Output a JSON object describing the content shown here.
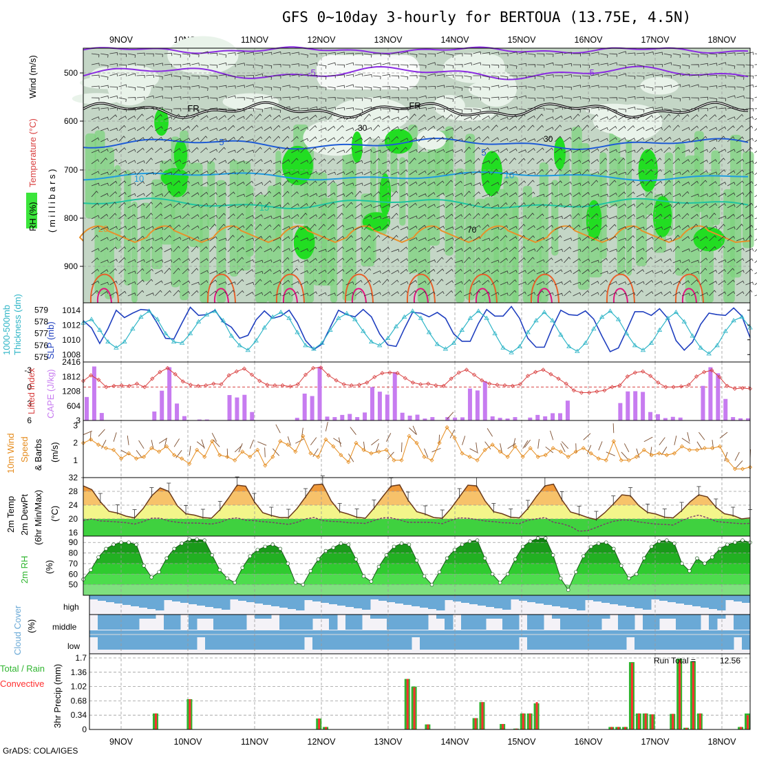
{
  "title": "GFS 0~10day 3-hourly for BERTOUA (13.75E, 4.5N)",
  "footer": "GrADS: COLA/IGES",
  "dates": [
    "9NOV",
    "10NOV",
    "11NOV",
    "12NOV",
    "13NOV",
    "14NOV",
    "15NOV",
    "16NOV",
    "17NOV",
    "18NOV"
  ],
  "colors": {
    "rh_light": "#e9f3ea",
    "rh_mid": "#c6d9c8",
    "rh_green": "#7ed37e",
    "rh_bright": "#22dd22",
    "slp": "#1f3fbf",
    "thick": "#2fb5c7",
    "li": "#d94040",
    "cape": "#c77cf0",
    "wind": "#e58b1c",
    "rain": "#2fb52f",
    "conv": "#ff3030",
    "cloud": "#6aa9d6",
    "cloud_bg": "#f4f2f7"
  },
  "panels": {
    "sounding": {
      "labels": [
        "RH (%)",
        "Temperature (°C)",
        "Wind (m/s)"
      ],
      "unit": "( m i l l i b a r s )",
      "ticks": [
        "500",
        "600",
        "700",
        "800",
        "900"
      ],
      "contours": [
        {
          "label": "-5",
          "color": "#8a2be2"
        },
        {
          "label": "FR",
          "color": "#000000"
        },
        {
          "label": "5",
          "color": "#1e5bd6"
        },
        {
          "label": "10",
          "color": "#1f9be0"
        },
        {
          "label": "15",
          "color": "#1fc4a0"
        },
        {
          "label": "20",
          "color": "#e8902a"
        }
      ],
      "rh_labels": [
        "30",
        "30",
        "70"
      ]
    },
    "slp": {
      "labels": [
        "1000-500mb",
        "Thickness (dm)",
        "SLP (mb)"
      ],
      "left_ticks": [
        "575",
        "576",
        "577",
        "578",
        "579"
      ],
      "right_ticks": [
        "1008",
        "1010",
        "1012",
        "1014"
      ]
    },
    "cape": {
      "labels": [
        "Lifted Index",
        "CAPE (J/kg)"
      ],
      "left_ticks": [
        "-3",
        "0",
        "3",
        "6"
      ],
      "right_ticks": [
        "3",
        "604",
        "1208",
        "1812",
        "2416"
      ]
    },
    "wind10": {
      "labels": [
        "10m Wind",
        "Speed",
        "& Barbs"
      ],
      "unit": "(m/s)",
      "ticks": [
        "1",
        "2",
        "3"
      ]
    },
    "temp": {
      "labels": [
        "2m Temp",
        "2m DewPt",
        "(6hr Min/Max)"
      ],
      "unit": "(°C)",
      "ticks": [
        "16",
        "20",
        "24",
        "28",
        "32"
      ]
    },
    "rh2m": {
      "labels": [
        "2m RH"
      ],
      "unit": "(%)",
      "ticks": [
        "50",
        "60",
        "70",
        "80",
        "90"
      ]
    },
    "cloud": {
      "labels": [
        "Cloud Cover"
      ],
      "unit": "(%)",
      "levels": [
        "high",
        "middle",
        "low"
      ]
    },
    "precip": {
      "labels": [
        "Total / Rain",
        "Convective"
      ],
      "unit": "3hr Precip (mm)",
      "ticks": [
        "0",
        "0.34",
        "0.68",
        "1.02",
        "1.36",
        "1.7"
      ],
      "run_total_label": "Run Total =",
      "run_total_value": "12.56"
    }
  },
  "chart_data": [
    {
      "type": "line",
      "title": "SLP (mb)",
      "x_unit": "3-hour steps from 8NOV 12Z",
      "series": [
        {
          "name": "SLP (mb)",
          "values": [
            1012.6,
            1011.6,
            1009.5,
            1011.5,
            1014.0,
            1013.0,
            1013.6,
            1014.1,
            1014.0,
            1012.2,
            1010.2,
            1010.1,
            1012.3,
            1014.4,
            1013.3,
            1013.4,
            1014.0,
            1012.4,
            1011.7,
            1010.2,
            1010.6,
            1012.7,
            1013.9,
            1012.9,
            1013.2,
            1014.0,
            1012.3,
            1009.9,
            1008.7,
            1009.4,
            1011.7,
            1014.0,
            1013.4,
            1013.1,
            1014.1,
            1013.1,
            1010.8,
            1009.3,
            1009.1,
            1011.5,
            1013.7,
            1013.6,
            1013.1,
            1013.7,
            1012.9,
            1010.8,
            1009.8,
            1009.8,
            1012.2,
            1014.1,
            1013.2,
            1013.2,
            1014.5,
            1012.9,
            1010.2,
            1009.0,
            1009.0,
            1011.7,
            1014.0,
            1013.4,
            1013.3,
            1013.9,
            1012.8,
            1010.5,
            1008.4,
            1008.9,
            1011.3,
            1013.8,
            1013.8,
            1013.3,
            1014.2,
            1012.9,
            1009.9,
            1008.6,
            1009.7,
            1012.1,
            1013.6,
            1013.4,
            1013.3,
            1014.3,
            1013.2,
            1010.3
          ]
        },
        {
          "name": "1000-500mb Thickness (dm)",
          "values": [
            577.9,
            578.2,
            577.3,
            576.3,
            575.8,
            576.3,
            577.4,
            578.4,
            578.9,
            578.2,
            577.0,
            576.3,
            576.2,
            577.0,
            578.0,
            578.6,
            578.9,
            578.1,
            576.8,
            576.0,
            575.6,
            576.4,
            577.5,
            578.4,
            578.8,
            578.3,
            577.1,
            576.0,
            575.7,
            576.2,
            577.3,
            578.3,
            578.7,
            578.2,
            577.2,
            576.3,
            576.0,
            576.6,
            577.6,
            578.4,
            578.9,
            578.3,
            577.1,
            576.1,
            575.7,
            576.2,
            577.3,
            578.3,
            578.9,
            578.3,
            577.0,
            575.8,
            575.4,
            575.9,
            577.1,
            578.1,
            578.8,
            578.1,
            576.9,
            575.9,
            575.5,
            576.2,
            577.4,
            578.4,
            578.9,
            578.2,
            577.0,
            576.0,
            575.6,
            576.2,
            577.3,
            578.3,
            578.8,
            578.0,
            576.8,
            575.8,
            575.3,
            576.0,
            577.2,
            578.1,
            578.4,
            577.5
          ]
        }
      ]
    },
    {
      "type": "bar",
      "title": "CAPE (J/kg)",
      "series": [
        {
          "name": "CAPE (J/kg)",
          "values": [
            970,
            2230,
            310,
            3,
            3,
            3,
            3,
            3,
            3,
            370,
            1230,
            2200,
            700,
            180,
            3,
            40,
            40,
            3,
            3,
            1050,
            950,
            1060,
            350,
            3,
            3,
            3,
            3,
            3,
            110,
            1110,
            1010,
            2220,
            160,
            140,
            230,
            270,
            140,
            330,
            1380,
            1190,
            1070,
            2000,
            320,
            200,
            240,
            80,
            140,
            3,
            140,
            120,
            130,
            1320,
            1240,
            1630,
            170,
            110,
            80,
            140,
            3,
            120,
            230,
            170,
            300,
            300,
            820,
            3,
            3,
            3,
            3,
            3,
            3,
            720,
            1200,
            1210,
            1180,
            350,
            260,
            100,
            150,
            120,
            3,
            3,
            1430,
            2200,
            1950,
            890,
            140,
            90,
            90
          ]
        },
        {
          "name": "Lifted Index",
          "values": [
            -1.1,
            -2.1,
            -1.3,
            0.0,
            -0.2,
            -0.3,
            -0.2,
            -0.6,
            0.0,
            -1.5,
            -2.7,
            -3.4,
            -2.3,
            -1.0,
            -0.4,
            -0.2,
            -0.3,
            -0.6,
            -0.5,
            -2.1,
            -2.8,
            -3.3,
            -2.2,
            -1.1,
            -0.4,
            -0.3,
            -0.3,
            -0.1,
            -0.5,
            -2.2,
            -3.4,
            -3.5,
            -2.1,
            -1.2,
            -0.5,
            -0.3,
            -0.4,
            -0.8,
            -1.8,
            -2.5,
            -2.6,
            -2.5,
            -1.6,
            -0.8,
            -0.5,
            -0.6,
            -0.3,
            -0.2,
            -1.5,
            -2.6,
            -3.1,
            -2.2,
            -1.2,
            -0.6,
            -0.4,
            -0.3,
            -0.2,
            -0.5,
            -2.0,
            -2.7,
            -3.1,
            -2.3,
            -1.5,
            -0.6,
            0.6,
            1.0,
            1.0,
            0.8,
            0.6,
            0.0,
            -0.3,
            -1.9,
            -2.6,
            -2.8,
            -2.0,
            -0.8,
            0.0,
            0.0,
            -0.1,
            -0.4,
            -1.9,
            -2.7,
            -3.0,
            -1.8,
            -0.2,
            0.3,
            0.2,
            0.3
          ]
        }
      ]
    },
    {
      "type": "line",
      "title": "10m Wind Speed & Barbs (m/s)",
      "series": [
        {
          "name": "10m Wind Speed",
          "values": [
            2.0,
            2.2,
            1.9,
            1.7,
            1.6,
            1.1,
            1.4,
            1.1,
            1.2,
            1.7,
            1.5,
            1.8,
            1.3,
            1.1,
            0.8,
            1.6,
            1.2,
            2.1,
            1.3,
            1.2,
            1.0,
            1.5,
            1.2,
            1.6,
            0.7,
            1.2,
            2.1,
            1.9,
            1.5,
            2.4,
            1.4,
            1.2,
            2.2,
            1.8,
            1.3,
            0.9,
            2.0,
            1.6,
            1.4,
            1.5,
            1.6,
            1.0,
            1.0,
            2.4,
            2.0,
            1.2,
            1.0,
            2.0,
            2.9,
            2.3,
            1.4,
            1.2,
            1.0,
            1.6,
            1.9,
            1.5,
            1.2,
            1.8,
            1.2,
            1.7,
            1.2,
            1.3,
            1.7,
            1.5,
            1.2,
            1.5,
            1.7,
            1.4,
            1.1,
            1.0,
            2.1,
            1.0,
            1.0,
            1.2,
            1.6,
            1.3,
            1.4,
            1.3,
            1.4,
            1.8,
            1.6,
            1.6,
            1.7,
            1.7,
            1.8,
            1.0,
            0.5,
            0.5,
            0.6
          ]
        }
      ]
    },
    {
      "type": "area",
      "title": "2m Temp / 2m DewPt (°C)",
      "series": [
        {
          "name": "2m Temp",
          "values": [
            29.6,
            28.5,
            25.0,
            22.2,
            21.7,
            20.8,
            20.3,
            23.0,
            26.7,
            29.0,
            28.0,
            23.8,
            21.5,
            21.1,
            20.4,
            20.2,
            22.7,
            26.1,
            29.8,
            29.5,
            25.0,
            21.8,
            21.0,
            20.4,
            20.4,
            23.0,
            26.4,
            29.9,
            30.1,
            25.2,
            22.1,
            21.4,
            20.5,
            20.2,
            23.1,
            26.4,
            29.5,
            29.9,
            25.4,
            22.1,
            21.4,
            20.4,
            20.2,
            23.0,
            26.4,
            29.8,
            29.6,
            25.2,
            22.1,
            21.5,
            20.5,
            20.3,
            23.0,
            26.5,
            29.6,
            30.1,
            25.5,
            22.0,
            21.3,
            20.4,
            19.8,
            21.8,
            24.3,
            27.0,
            26.7,
            23.8,
            21.9,
            21.4,
            20.5,
            20.3,
            22.4,
            25.0,
            27.0,
            26.4,
            23.4,
            21.5,
            21.0,
            20.0,
            20.3
          ]
        },
        {
          "name": "2m DewPt",
          "values": [
            19.5,
            20.0,
            19.4,
            19.3,
            19.1,
            18.9,
            18.5,
            19.2,
            20.2,
            20.2,
            19.4,
            19.0,
            18.8,
            18.8,
            18.7,
            18.5,
            19.0,
            20.0,
            20.3,
            19.6,
            19.5,
            19.2,
            19.0,
            18.7,
            18.4,
            19.0,
            20.0,
            20.4,
            19.5,
            19.3,
            19.2,
            18.9,
            18.8,
            18.7,
            19.5,
            20.3,
            20.3,
            19.7,
            19.0,
            19.0,
            19.0,
            18.9,
            18.6,
            19.6,
            20.3,
            20.2,
            19.8,
            19.4,
            19.2,
            18.9,
            18.8,
            18.6,
            19.6,
            20.0,
            20.4,
            19.0,
            18.6,
            17.8,
            16.4,
            16.6,
            17.5,
            18.5,
            19.3,
            19.7,
            19.6,
            19.1,
            18.8,
            18.5,
            18.4,
            18.2,
            19.5,
            20.5,
            21.1,
            20.3,
            19.3,
            19.0,
            18.8,
            18.6,
            18.7
          ]
        }
      ]
    },
    {
      "type": "area",
      "title": "2m RH (%)",
      "series": [
        {
          "name": "2m RH",
          "values": [
            55,
            64,
            76,
            84,
            88,
            90,
            90,
            88,
            68,
            57,
            62,
            75,
            84,
            89,
            93,
            93,
            92,
            78,
            64,
            56,
            52,
            66,
            77,
            83,
            86,
            88,
            84,
            70,
            52,
            50,
            63,
            74,
            82,
            85,
            89,
            88,
            74,
            58,
            53,
            67,
            78,
            86,
            89,
            88,
            73,
            58,
            50,
            62,
            75,
            83,
            88,
            91,
            92,
            75,
            60,
            52,
            60,
            74,
            86,
            91,
            94,
            94,
            78,
            56,
            45,
            62,
            77,
            86,
            89,
            90,
            84,
            68,
            56,
            60,
            75,
            86,
            91,
            92,
            89,
            70,
            63,
            75,
            70,
            76,
            84,
            88,
            90,
            92,
            90
          ]
        }
      ]
    },
    {
      "type": "bar",
      "title": "3hr Precip (mm)",
      "series": [
        {
          "name": "Total / Rain",
          "values": [
            0,
            0,
            0,
            0,
            0,
            0,
            0,
            0,
            0,
            0.38,
            0,
            0,
            0,
            0,
            0.72,
            0,
            0,
            0,
            0,
            0,
            0,
            0,
            0,
            0,
            0,
            0,
            0,
            0,
            0,
            0,
            0,
            0,
            0,
            0.26,
            0.06,
            0,
            0,
            0,
            0,
            0,
            0,
            0,
            0,
            0,
            0,
            0,
            1.2,
            1.02,
            0,
            0.12,
            0,
            0,
            0,
            0,
            0,
            0,
            0.27,
            0.65,
            0,
            0,
            0.13,
            0,
            0.02,
            0.38,
            0.38,
            0.62,
            0,
            0,
            0,
            0,
            0,
            0,
            0,
            0,
            0,
            0,
            0.06,
            0.06,
            0.06,
            1.6,
            0.38,
            0.38,
            0.36,
            0,
            0,
            0.37,
            1.68,
            0.04,
            1.62,
            0.38,
            0,
            0,
            0,
            0,
            0,
            0.06,
            0.38
          ]
        },
        {
          "name": "Convective",
          "values": [
            0,
            0,
            0,
            0,
            0,
            0,
            0,
            0,
            0,
            0.38,
            0,
            0,
            0,
            0,
            0.72,
            0,
            0,
            0,
            0,
            0,
            0,
            0,
            0,
            0,
            0,
            0,
            0,
            0,
            0,
            0,
            0,
            0,
            0,
            0.26,
            0.06,
            0,
            0,
            0,
            0,
            0,
            0,
            0,
            0,
            0,
            0,
            0,
            1.2,
            1.0,
            0,
            0.12,
            0,
            0,
            0,
            0,
            0,
            0,
            0.27,
            0.65,
            0,
            0,
            0.13,
            0,
            0.02,
            0.38,
            0.38,
            0.65,
            0,
            0,
            0,
            0,
            0,
            0,
            0,
            0,
            0,
            0,
            0.06,
            0.06,
            0.06,
            1.58,
            0.38,
            0.38,
            0.36,
            0,
            0,
            0.37,
            1.65,
            0.04,
            1.6,
            0.38,
            0,
            0,
            0,
            0,
            0,
            0.06,
            0.34
          ]
        }
      ]
    }
  ]
}
